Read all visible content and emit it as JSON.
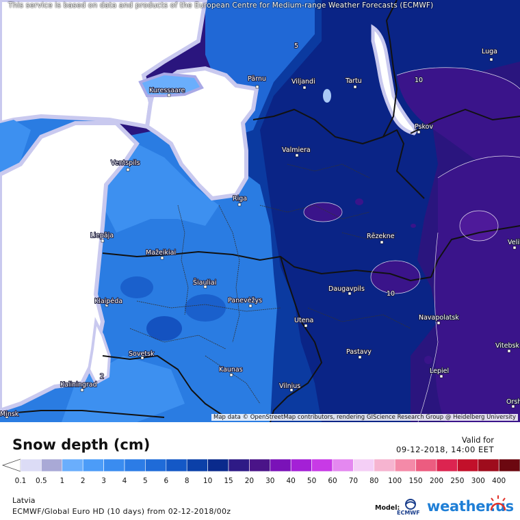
{
  "notice": "This service is based on data and products of the European Centre for Medium-range Weather Forecasts (ECMWF)",
  "attribution": "Map data © OpenStreetMap contributors, rendering GIScience Research Group @ Heidelberg University",
  "title": "Snow depth (cm)",
  "valid_label": "Valid for",
  "valid_time": "09-12-2018, 14:00 EET",
  "region": "Latvia",
  "model_run": "ECMWF/Global Euro HD (10 days) from 02-12-2018/00z",
  "model_label": "Model:",
  "ecmwf_logo_text": "ECMWF",
  "brand": "weather.us",
  "legend": {
    "labels": [
      "0.1",
      "0.5",
      "1",
      "2",
      "3",
      "4",
      "5",
      "6",
      "8",
      "10",
      "15",
      "20",
      "30",
      "40",
      "50",
      "60",
      "70",
      "80",
      "100",
      "150",
      "200",
      "250",
      "300",
      "400"
    ],
    "colors": [
      "#dcdcf6",
      "#a9a9d6",
      "#6aaefc",
      "#4c9cf8",
      "#3a8cf0",
      "#2c7ce6",
      "#1f6bd8",
      "#1458c6",
      "#0b40a8",
      "#0a2a8c",
      "#2e1a86",
      "#4a1488",
      "#7a12b8",
      "#a420d6",
      "#c83ae6",
      "#e488f0",
      "#f4cff6",
      "#f6b4d0",
      "#f48aa8",
      "#ec5c80",
      "#dc2450",
      "#c2102a",
      "#9e0c1c",
      "#6c0810"
    ],
    "end_color": "#3a0608"
  },
  "cities": [
    {
      "name": "Luga"
    },
    {
      "name": "Pärnu"
    },
    {
      "name": "Viljandi"
    },
    {
      "name": "Tartu"
    },
    {
      "name": "Kuressaare"
    },
    {
      "name": "Pskov"
    },
    {
      "name": "Valmiera"
    },
    {
      "name": "Ventspils"
    },
    {
      "name": "Riga"
    },
    {
      "name": "Rēzekne"
    },
    {
      "name": "Liepāja"
    },
    {
      "name": "Mažeikiai"
    },
    {
      "name": "Šiauliai"
    },
    {
      "name": "Daugavpils"
    },
    {
      "name": "Klaipėda"
    },
    {
      "name": "Panevėžys"
    },
    {
      "name": "Navapolatsk"
    },
    {
      "name": "Utena"
    },
    {
      "name": "Vitebsk"
    },
    {
      "name": "Sovetsk"
    },
    {
      "name": "Pastavy"
    },
    {
      "name": "Kaunas"
    },
    {
      "name": "Lepiel"
    },
    {
      "name": "Kaliningrad"
    },
    {
      "name": "Vilnius"
    },
    {
      "name": "Orsha"
    },
    {
      "name": "Velikiye Luki"
    },
    {
      "name": "Minsk"
    }
  ],
  "contour_values": [
    "5",
    "10",
    "10",
    "2"
  ]
}
